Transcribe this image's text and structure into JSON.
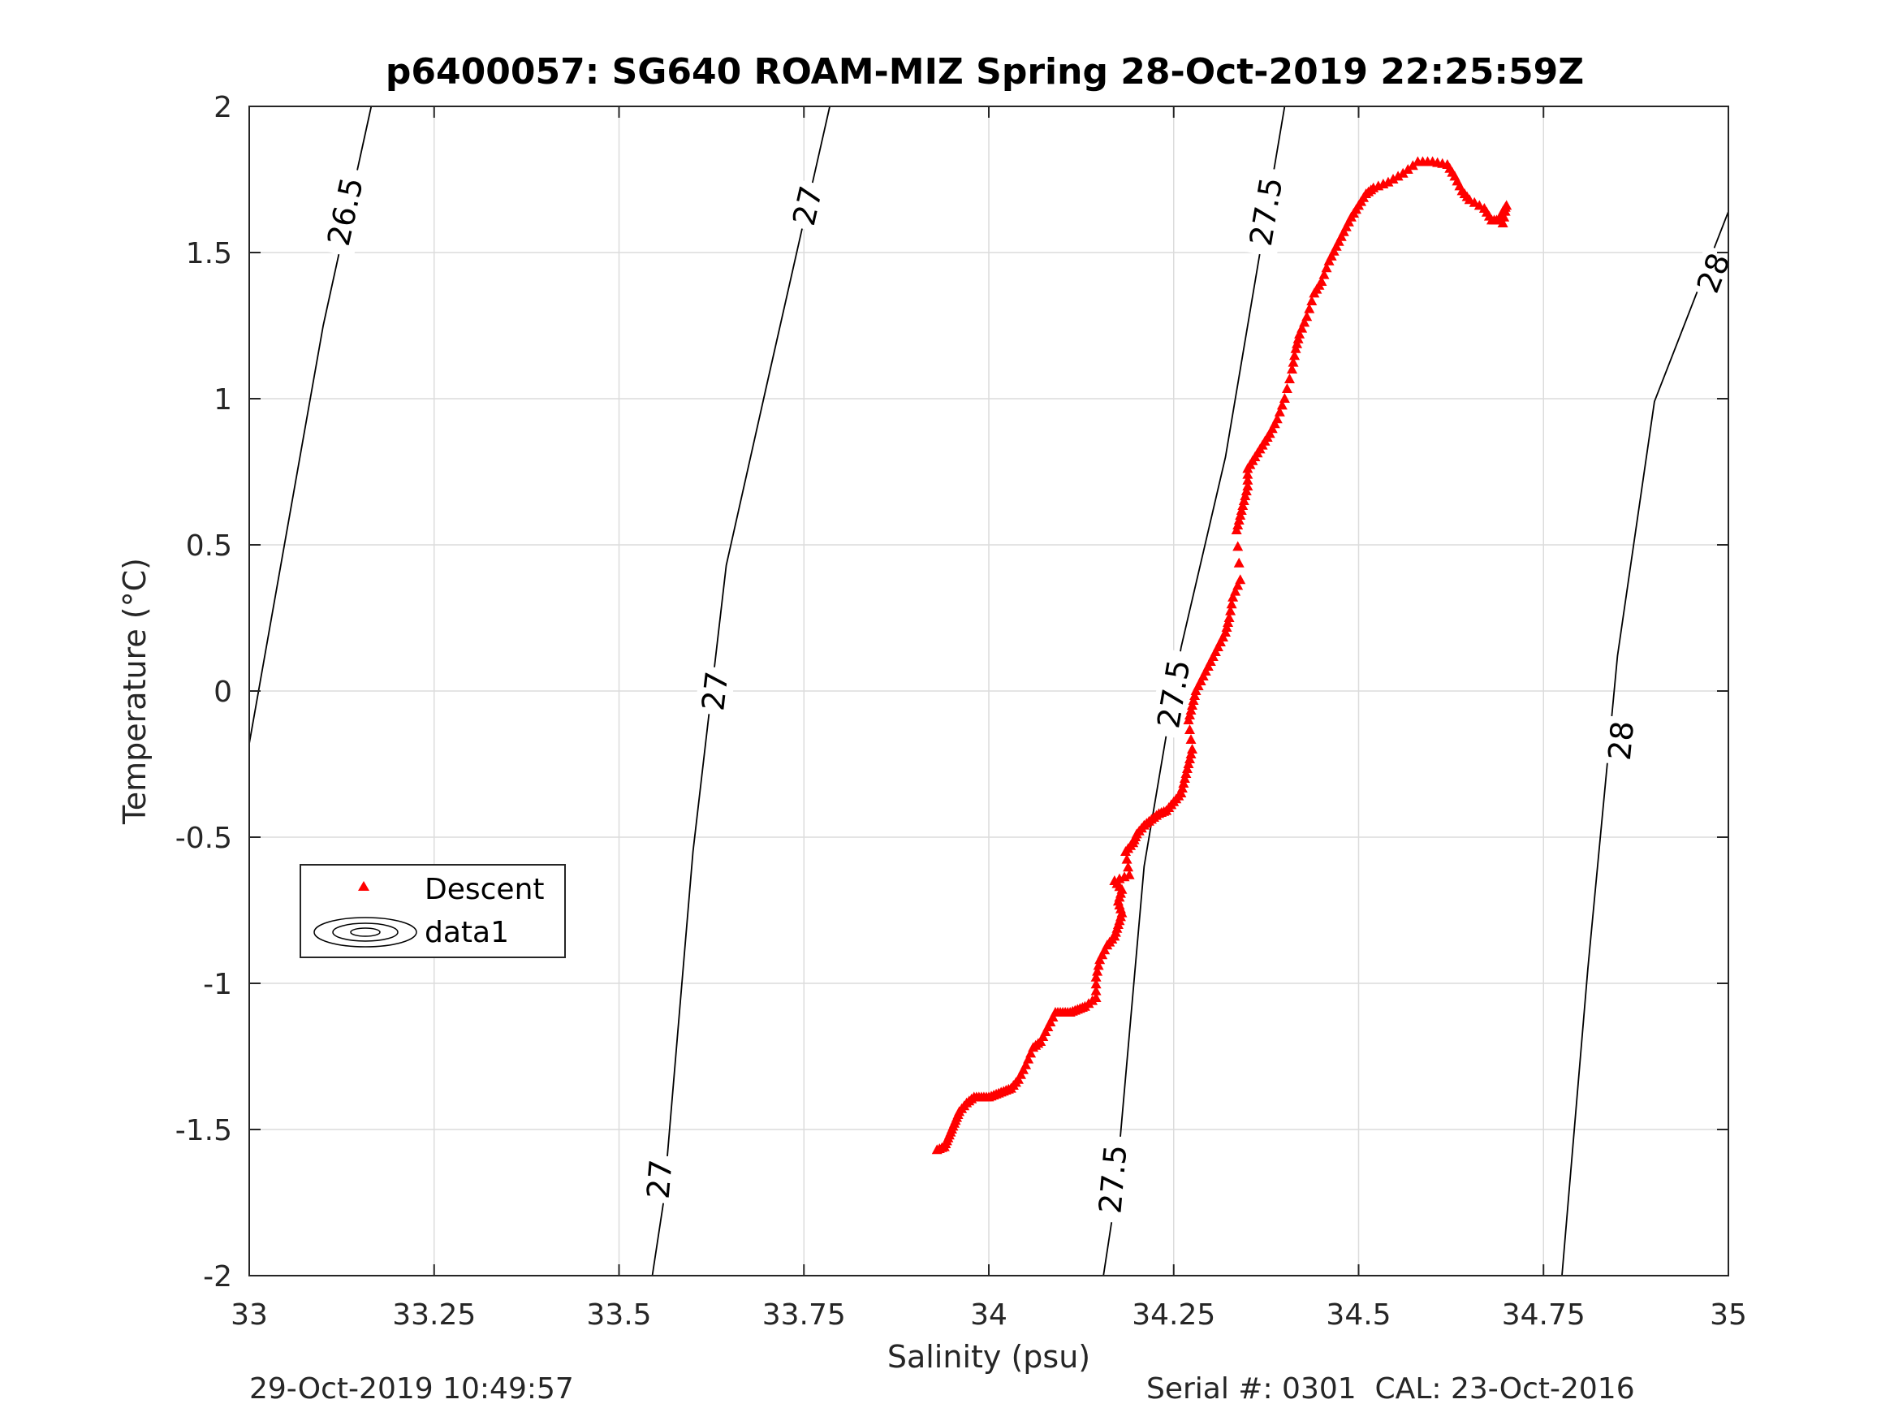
{
  "chart_data": {
    "type": "scatter",
    "title": "p6400057: SG640 ROAM-MIZ Spring 28-Oct-2019 22:25:59Z",
    "xlabel": "Salinity (psu)",
    "ylabel": "Temperature (°C)",
    "xlim": [
      33,
      35
    ],
    "ylim": [
      -2,
      2
    ],
    "xticks": [
      33,
      33.25,
      33.5,
      33.75,
      34,
      34.25,
      34.5,
      34.75,
      35
    ],
    "xtick_labels": [
      "33",
      "33.25",
      "33.5",
      "33.75",
      "34",
      "34.25",
      "34.5",
      "34.75",
      "35"
    ],
    "yticks": [
      2,
      1.5,
      1,
      0.5,
      0,
      -0.5,
      -1,
      -1.5,
      -2
    ],
    "ytick_labels": [
      "2",
      "1.5",
      "1",
      "0.5",
      "0",
      "-0.5",
      "-1",
      "-1.5",
      "-2"
    ],
    "grid": true,
    "legend": {
      "placement": "middle-left",
      "entries": [
        {
          "label": "Descent",
          "marker": "triangle",
          "color": "#ff0000"
        },
        {
          "label": "data1",
          "marker": "contour",
          "color": "#000000"
        }
      ]
    },
    "series": [
      {
        "name": "Descent",
        "color": "#ff0000",
        "marker": "triangle",
        "points": [
          [
            33.93,
            -1.57
          ],
          [
            33.94,
            -1.56
          ],
          [
            33.945,
            -1.53
          ],
          [
            33.95,
            -1.5
          ],
          [
            33.955,
            -1.47
          ],
          [
            33.96,
            -1.44
          ],
          [
            33.97,
            -1.41
          ],
          [
            33.98,
            -1.39
          ],
          [
            33.99,
            -1.39
          ],
          [
            34.0,
            -1.39
          ],
          [
            34.01,
            -1.38
          ],
          [
            34.02,
            -1.37
          ],
          [
            34.03,
            -1.36
          ],
          [
            34.04,
            -1.33
          ],
          [
            34.05,
            -1.28
          ],
          [
            34.06,
            -1.22
          ],
          [
            34.07,
            -1.2
          ],
          [
            34.08,
            -1.15
          ],
          [
            34.09,
            -1.1
          ],
          [
            34.1,
            -1.1
          ],
          [
            34.11,
            -1.1
          ],
          [
            34.12,
            -1.09
          ],
          [
            34.13,
            -1.08
          ],
          [
            34.145,
            -1.05
          ],
          [
            34.145,
            -0.98
          ],
          [
            34.15,
            -0.92
          ],
          [
            34.16,
            -0.87
          ],
          [
            34.17,
            -0.84
          ],
          [
            34.175,
            -0.8
          ],
          [
            34.18,
            -0.76
          ],
          [
            34.175,
            -0.72
          ],
          [
            34.18,
            -0.68
          ],
          [
            34.17,
            -0.65
          ],
          [
            34.19,
            -0.63
          ],
          [
            34.185,
            -0.55
          ],
          [
            34.195,
            -0.52
          ],
          [
            34.2,
            -0.49
          ],
          [
            34.21,
            -0.46
          ],
          [
            34.22,
            -0.44
          ],
          [
            34.23,
            -0.42
          ],
          [
            34.24,
            -0.41
          ],
          [
            34.25,
            -0.38
          ],
          [
            34.26,
            -0.35
          ],
          [
            34.265,
            -0.3
          ],
          [
            34.27,
            -0.25
          ],
          [
            34.275,
            -0.2
          ],
          [
            34.27,
            -0.1
          ],
          [
            34.275,
            -0.05
          ],
          [
            34.28,
            0.0
          ],
          [
            34.29,
            0.05
          ],
          [
            34.3,
            0.1
          ],
          [
            34.31,
            0.15
          ],
          [
            34.32,
            0.2
          ],
          [
            34.325,
            0.25
          ],
          [
            34.33,
            0.32
          ],
          [
            34.34,
            0.38
          ],
          [
            34.335,
            0.55
          ],
          [
            34.34,
            0.6
          ],
          [
            34.345,
            0.65
          ],
          [
            34.35,
            0.7
          ],
          [
            34.35,
            0.76
          ],
          [
            34.36,
            0.8
          ],
          [
            34.37,
            0.84
          ],
          [
            34.38,
            0.88
          ],
          [
            34.39,
            0.93
          ],
          [
            34.4,
            1.0
          ],
          [
            34.41,
            1.1
          ],
          [
            34.415,
            1.17
          ],
          [
            34.42,
            1.22
          ],
          [
            34.43,
            1.28
          ],
          [
            34.44,
            1.36
          ],
          [
            34.45,
            1.4
          ],
          [
            34.46,
            1.47
          ],
          [
            34.47,
            1.52
          ],
          [
            34.48,
            1.57
          ],
          [
            34.49,
            1.62
          ],
          [
            34.5,
            1.66
          ],
          [
            34.51,
            1.7
          ],
          [
            34.52,
            1.72
          ],
          [
            34.54,
            1.74
          ],
          [
            34.56,
            1.77
          ],
          [
            34.58,
            1.81
          ],
          [
            34.6,
            1.81
          ],
          [
            34.62,
            1.8
          ],
          [
            34.63,
            1.76
          ],
          [
            34.64,
            1.71
          ],
          [
            34.65,
            1.68
          ],
          [
            34.67,
            1.65
          ],
          [
            34.68,
            1.61
          ],
          [
            34.69,
            1.61
          ],
          [
            34.695,
            1.64
          ],
          [
            34.7,
            1.66
          ],
          [
            34.695,
            1.6
          ]
        ]
      }
    ],
    "contours": [
      {
        "level": "26.5",
        "points": [
          [
            33.0,
            -0.18
          ],
          [
            33.1,
            1.25
          ],
          [
            33.165,
            2.0
          ]
        ],
        "labels": [
          {
            "text": "26.5",
            "x": 33.13,
            "y": 1.64
          }
        ]
      },
      {
        "level": "27",
        "points": [
          [
            33.545,
            -2.0
          ],
          [
            33.56,
            -1.75
          ],
          [
            33.6,
            -0.55
          ],
          [
            33.645,
            0.43
          ],
          [
            33.7,
            1.05
          ],
          [
            33.785,
            2.0
          ]
        ],
        "labels": [
          {
            "text": "27",
            "x": 33.555,
            "y": -1.67
          },
          {
            "text": "27",
            "x": 33.63,
            "y": 0.0
          },
          {
            "text": "27",
            "x": 33.755,
            "y": 1.66
          }
        ]
      },
      {
        "level": "27.5",
        "points": [
          [
            34.155,
            -2.0
          ],
          [
            34.17,
            -1.75
          ],
          [
            34.21,
            -0.6
          ],
          [
            34.26,
            0.15
          ],
          [
            34.32,
            0.8
          ],
          [
            34.4,
            2.0
          ]
        ],
        "labels": [
          {
            "text": "27.5",
            "x": 34.168,
            "y": -1.67
          },
          {
            "text": "27.5",
            "x": 34.25,
            "y": -0.01
          },
          {
            "text": "27.5",
            "x": 34.375,
            "y": 1.64
          }
        ]
      },
      {
        "level": "28",
        "points": [
          [
            34.775,
            -2.0
          ],
          [
            34.81,
            -0.95
          ],
          [
            34.85,
            0.12
          ],
          [
            34.9,
            0.99
          ],
          [
            35.0,
            1.64
          ]
        ],
        "labels": [
          {
            "text": "28",
            "x": 34.855,
            "y": -0.17
          },
          {
            "text": "28",
            "x": 34.98,
            "y": 1.43
          }
        ]
      }
    ]
  },
  "footer": {
    "left": "29-Oct-2019 10:49:57",
    "right": "Serial #: 0301  CAL: 23-Oct-2016"
  }
}
